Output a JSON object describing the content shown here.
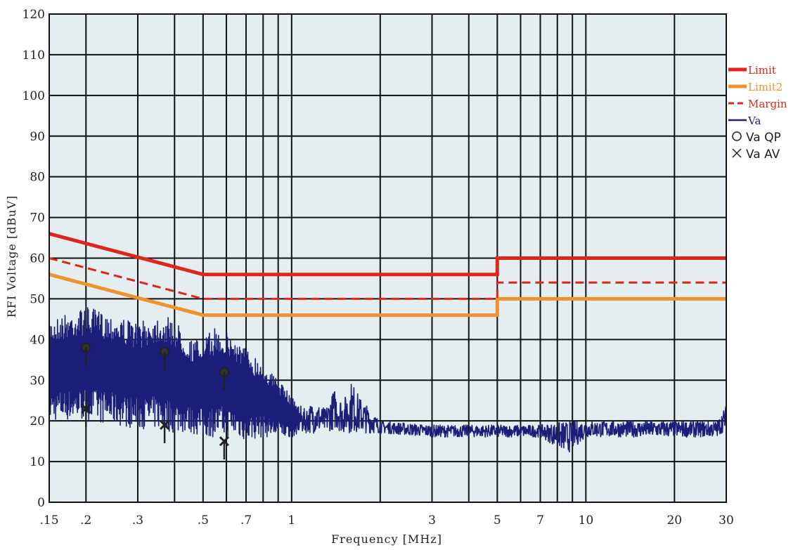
{
  "chart_data": {
    "type": "line",
    "xlabel": "Frequency [MHz]",
    "ylabel": "RFI Voltage [dBuV]",
    "xscale": "log",
    "xlim": [
      0.15,
      30
    ],
    "ylim": [
      0,
      120
    ],
    "grid": true,
    "legend_position": "right",
    "x_ticks": [
      {
        "value": 0.15,
        "label": ".15"
      },
      {
        "value": 0.2,
        "label": ".2"
      },
      {
        "value": 0.3,
        "label": ".3"
      },
      {
        "value": 0.5,
        "label": ".5"
      },
      {
        "value": 0.7,
        "label": ".7"
      },
      {
        "value": 1,
        "label": "1"
      },
      {
        "value": 3,
        "label": "3"
      },
      {
        "value": 5,
        "label": "5"
      },
      {
        "value": 7,
        "label": "7"
      },
      {
        "value": 10,
        "label": "10"
      },
      {
        "value": 20,
        "label": "20"
      },
      {
        "value": 30,
        "label": "30"
      }
    ],
    "y_ticks": [
      "0",
      "10",
      "20",
      "30",
      "40",
      "50",
      "60",
      "70",
      "80",
      "90",
      "100",
      "110",
      "120"
    ],
    "series": [
      {
        "name": "Limit",
        "color": "#e0251b",
        "style": "solid",
        "x": [
          0.15,
          0.5,
          5,
          5,
          30
        ],
        "y": [
          66,
          56,
          56,
          60,
          60
        ]
      },
      {
        "name": "Limit2",
        "color": "#f0922e",
        "style": "solid",
        "x": [
          0.15,
          0.5,
          5,
          5,
          30
        ],
        "y": [
          56,
          46,
          46,
          50,
          50
        ]
      },
      {
        "name": "Margin",
        "color": "#e0251b",
        "style": "dashed",
        "x": [
          0.15,
          0.5,
          5,
          5,
          30
        ],
        "y": [
          60,
          50,
          50,
          54,
          54
        ]
      },
      {
        "name": "Va",
        "color": "#1c1e7a",
        "style": "noise",
        "envelope": {
          "x": [
            0.15,
            0.2,
            0.25,
            0.3,
            0.35,
            0.4,
            0.45,
            0.5,
            0.55,
            0.6,
            0.65,
            0.7,
            0.8,
            0.9,
            1.0,
            1.1,
            1.2,
            1.3,
            1.4,
            1.5,
            1.6,
            1.7,
            2,
            3,
            5,
            7,
            8.7,
            10,
            20,
            28,
            30
          ],
          "upper": [
            45,
            48,
            46,
            44,
            46,
            45,
            40,
            40,
            43,
            42,
            40,
            38,
            34,
            30,
            26,
            23,
            25,
            23,
            28,
            25,
            30,
            26,
            20,
            19,
            19,
            19,
            20,
            20,
            20,
            20,
            24
          ],
          "lower": [
            20,
            20,
            19,
            18,
            18,
            17,
            17,
            16,
            16,
            16,
            16,
            15,
            16,
            16,
            16,
            17,
            17,
            17,
            18,
            17,
            17,
            17,
            17,
            16,
            16,
            16,
            12,
            16,
            16,
            16,
            18
          ]
        }
      },
      {
        "name": "Va QP",
        "marker": "circle",
        "color": "#222222",
        "x": [
          0.2,
          0.37,
          0.59
        ],
        "y": [
          38,
          37,
          32
        ]
      },
      {
        "name": "Va AV",
        "marker": "x",
        "color": "#222222",
        "x": [
          0.2,
          0.37,
          0.59
        ],
        "y": [
          23,
          19,
          15
        ]
      }
    ],
    "legend": [
      {
        "label": "Limit",
        "color": "#e0251b",
        "style": "solid"
      },
      {
        "label": "Limit2",
        "color": "#f0922e",
        "style": "solid"
      },
      {
        "label": "Margin",
        "color": "#e0251b",
        "style": "dashed"
      },
      {
        "label": "Va",
        "color": "#1c1e7a",
        "style": "solid"
      },
      {
        "label": "Va QP",
        "color": "#222222",
        "style": "circle"
      },
      {
        "label": "Va AV",
        "color": "#222222",
        "style": "x"
      }
    ],
    "colors": {
      "plot_bg": "#e4eef0",
      "grid": "#111111"
    }
  }
}
